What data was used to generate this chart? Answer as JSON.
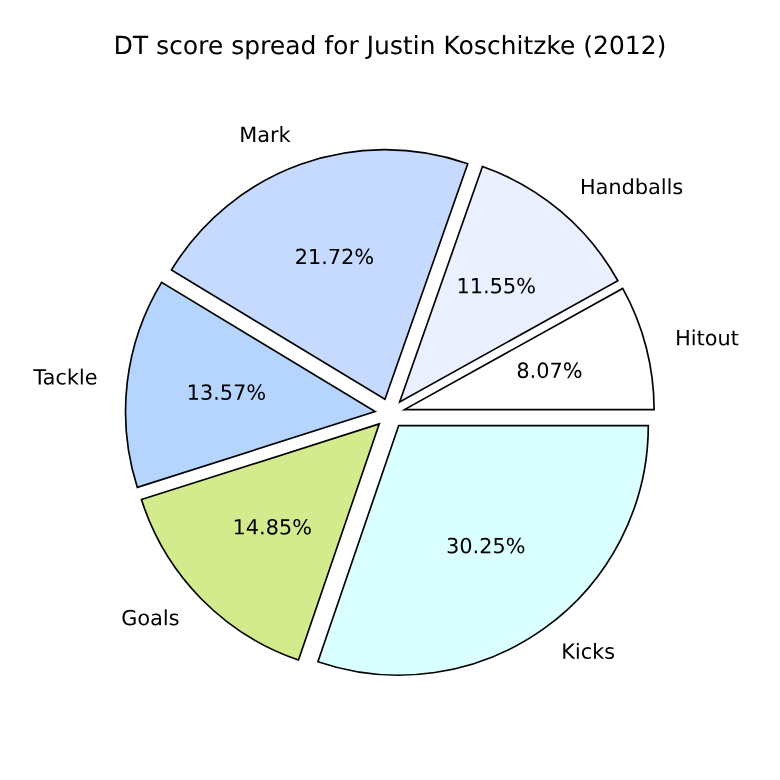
{
  "chart_data": {
    "type": "pie",
    "title": "DT score spread for Justin Koschitzke (2012)",
    "categories": [
      "Hitout",
      "Handballs",
      "Mark",
      "Tackle",
      "Goals",
      "Kicks"
    ],
    "values": [
      8.07,
      11.55,
      21.72,
      13.57,
      14.85,
      30.25
    ],
    "value_labels": [
      "8.07%",
      "11.55%",
      "21.72%",
      "13.57%",
      "14.85%",
      "30.25%"
    ],
    "colors": [
      "#ffffff",
      "#eaf0ff",
      "#c6d9ff",
      "#b5d5ff",
      "#d3eb8c",
      "#d9ffff"
    ]
  }
}
